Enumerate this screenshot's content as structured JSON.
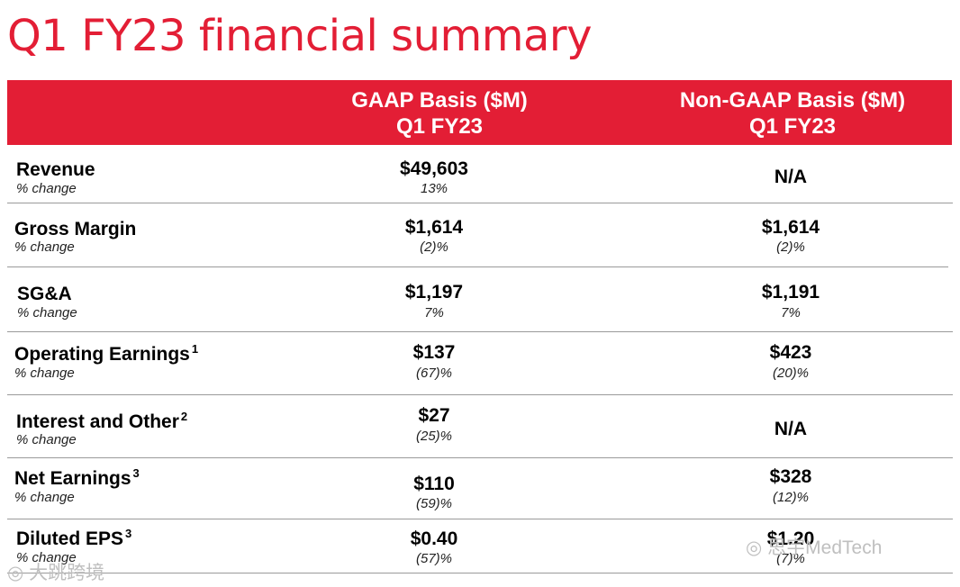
{
  "title": "Q1 FY23 financial summary",
  "colors": {
    "accent": "#e31e35"
  },
  "header": {
    "gaap": {
      "line1": "GAAP Basis ($M)",
      "line2": "Q1 FY23"
    },
    "non_gaap": {
      "line1": "Non-GAAP Basis ($M)",
      "line2": "Q1 FY23"
    }
  },
  "rows": [
    {
      "label": "Revenue",
      "sup": "",
      "sub": "% change",
      "gaap_value": "$49,603",
      "gaap_change": "13%",
      "non_gaap_value": "N/A",
      "non_gaap_change": ""
    },
    {
      "label": "Gross Margin",
      "sup": "",
      "sub": "% change",
      "gaap_value": "$1,614",
      "gaap_change": "(2)%",
      "non_gaap_value": "$1,614",
      "non_gaap_change": "(2)%"
    },
    {
      "label": "SG&A",
      "sup": "",
      "sub": "% change",
      "gaap_value": "$1,197",
      "gaap_change": "7%",
      "non_gaap_value": "$1,191",
      "non_gaap_change": "7%"
    },
    {
      "label": "Operating Earnings",
      "sup": "1",
      "sub": "% change",
      "gaap_value": "$137",
      "gaap_change": "(67)%",
      "non_gaap_value": "$423",
      "non_gaap_change": "(20)%"
    },
    {
      "label": "Interest and Other",
      "sup": "2",
      "sub": "% change",
      "gaap_value": "$27",
      "gaap_change": "(25)%",
      "non_gaap_value": "N/A",
      "non_gaap_change": ""
    },
    {
      "label": "Net Earnings",
      "sup": "3",
      "sub": "% change",
      "gaap_value": "$110",
      "gaap_change": "(59)%",
      "non_gaap_value": "$328",
      "non_gaap_change": "(12)%"
    },
    {
      "label": "Diluted EPS",
      "sup": "3",
      "sub": "% change",
      "gaap_value": "$0.40",
      "gaap_change": "(57)%",
      "non_gaap_value": "$1.20",
      "non_gaap_change": "(7)%"
    }
  ],
  "watermarks": {
    "left": "大跳跨境",
    "right": "思宇MedTech"
  }
}
